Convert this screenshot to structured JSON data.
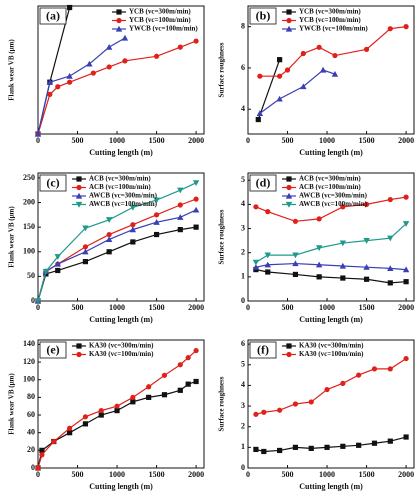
{
  "chart_data": [
    {
      "type": "line",
      "title": "(a)",
      "xlabel": "Cutting length (m)",
      "ylabel": "Flank wear VB (μm)",
      "legend": "upper right",
      "xlim": [
        0,
        2100
      ],
      "xticks": [
        0,
        500,
        1000,
        1500,
        2000
      ],
      "ylim": [
        0,
        420
      ],
      "yticks": [],
      "series": [
        {
          "name": "YCB (vc=300m/min)",
          "color": "#111111",
          "marker": "square",
          "x": [
            0,
            150,
            400
          ],
          "values": [
            0,
            170,
            415
          ]
        },
        {
          "name": "YCB (vc=100m/min)",
          "color": "#e0201b",
          "marker": "circle",
          "x": [
            0,
            150,
            250,
            400,
            700,
            900,
            1100,
            1500,
            1800,
            2000
          ],
          "values": [
            0,
            130,
            155,
            170,
            200,
            220,
            240,
            255,
            285,
            305
          ]
        },
        {
          "name": "YWCB (vc=100m/min)",
          "color": "#3a3fb5",
          "marker": "triangle",
          "x": [
            0,
            150,
            400,
            650,
            900,
            1100
          ],
          "values": [
            0,
            170,
            190,
            230,
            285,
            315
          ]
        }
      ]
    },
    {
      "type": "line",
      "title": "(b)",
      "xlabel": "Cutting length (m)",
      "ylabel": "Surface roughness",
      "legend": "upper left",
      "xlim": [
        0,
        2100
      ],
      "xticks": [
        0,
        500,
        1000,
        1500,
        2000
      ],
      "ylim": [
        2.8,
        9
      ],
      "yticks": [
        4,
        6,
        8
      ],
      "series": [
        {
          "name": "YCB (vc=300m/min)",
          "color": "#111111",
          "marker": "square",
          "x": [
            130,
            400
          ],
          "values": [
            3.5,
            6.4
          ]
        },
        {
          "name": "YCB (vc=100m/min)",
          "color": "#e0201b",
          "marker": "circle",
          "x": [
            150,
            400,
            500,
            700,
            900,
            1100,
            1500,
            1800,
            2000
          ],
          "values": [
            5.6,
            5.6,
            5.9,
            6.7,
            7.0,
            6.6,
            6.9,
            7.9,
            8.0
          ]
        },
        {
          "name": "YWCB (vc=100m/min)",
          "color": "#3a3fb5",
          "marker": "triangle",
          "x": [
            150,
            400,
            700,
            950,
            1100
          ],
          "values": [
            3.8,
            4.5,
            5.1,
            5.9,
            5.7
          ]
        }
      ]
    },
    {
      "type": "line",
      "title": "(c)",
      "xlabel": "Cutting length (m)",
      "ylabel": "Flank wear VB (μm)",
      "legend": "upper left",
      "xlim": [
        0,
        2100
      ],
      "xticks": [
        0,
        500,
        1000,
        1500,
        2000
      ],
      "ylim": [
        0,
        260
      ],
      "yticks": [
        0,
        50,
        100,
        150,
        200,
        250
      ],
      "series": [
        {
          "name": "ACB (vc=300m/min)",
          "color": "#111111",
          "marker": "square",
          "x": [
            0,
            100,
            250,
            600,
            900,
            1200,
            1500,
            1800,
            2000
          ],
          "values": [
            0,
            55,
            62,
            80,
            100,
            120,
            135,
            145,
            150
          ]
        },
        {
          "name": "ACB (vc=100m/min)",
          "color": "#e0201b",
          "marker": "circle",
          "x": [
            0,
            100,
            250,
            600,
            900,
            1200,
            1500,
            1800,
            2000
          ],
          "values": [
            0,
            60,
            75,
            110,
            135,
            155,
            175,
            195,
            207
          ]
        },
        {
          "name": "AWCB (vc=300m/min)",
          "color": "#3a3fb5",
          "marker": "triangle",
          "x": [
            0,
            100,
            250,
            600,
            900,
            1200,
            1500,
            1800,
            2000
          ],
          "values": [
            0,
            60,
            75,
            100,
            125,
            145,
            160,
            170,
            185
          ]
        },
        {
          "name": "AWCB (vc=100m/min)",
          "color": "#1f9a8a",
          "marker": "triangle-down",
          "x": [
            0,
            100,
            250,
            600,
            900,
            1200,
            1500,
            1800,
            2000
          ],
          "values": [
            0,
            60,
            90,
            148,
            165,
            190,
            205,
            225,
            240
          ]
        }
      ]
    },
    {
      "type": "line",
      "title": "(d)",
      "xlabel": "Cutting length (m)",
      "ylabel": "Surface roughness",
      "legend": "upper left",
      "xlim": [
        0,
        2100
      ],
      "xticks": [
        0,
        500,
        1000,
        1500,
        2000
      ],
      "ylim": [
        0,
        5.3
      ],
      "yticks": [
        0,
        1,
        2,
        3,
        4,
        5
      ],
      "series": [
        {
          "name": "ACB (vc=300m/min)",
          "color": "#111111",
          "marker": "square",
          "x": [
            100,
            250,
            600,
            900,
            1200,
            1500,
            1800,
            2000
          ],
          "values": [
            1.3,
            1.2,
            1.1,
            1.0,
            0.95,
            0.9,
            0.75,
            0.8
          ]
        },
        {
          "name": "ACB (vc=100m/min)",
          "color": "#e0201b",
          "marker": "circle",
          "x": [
            100,
            250,
            600,
            900,
            1200,
            1500,
            1800,
            2000
          ],
          "values": [
            3.9,
            3.7,
            3.3,
            3.4,
            3.9,
            4.0,
            4.2,
            4.3
          ]
        },
        {
          "name": "AWCB (vc=300m/min)",
          "color": "#3a3fb5",
          "marker": "triangle",
          "x": [
            100,
            250,
            600,
            900,
            1200,
            1500,
            1800,
            2000
          ],
          "values": [
            1.4,
            1.5,
            1.55,
            1.5,
            1.45,
            1.4,
            1.35,
            1.3
          ]
        },
        {
          "name": "AWCB (vc=100m/min)",
          "color": "#1f9a8a",
          "marker": "triangle-down",
          "x": [
            100,
            250,
            600,
            900,
            1200,
            1500,
            1800,
            2000
          ],
          "values": [
            1.6,
            1.9,
            1.9,
            2.2,
            2.4,
            2.5,
            2.6,
            3.2
          ]
        }
      ]
    },
    {
      "type": "line",
      "title": "(e)",
      "xlabel": "Cutting length (m)",
      "ylabel": "Flank wear VB (μm)",
      "legend": "upper left",
      "xlim": [
        0,
        2100
      ],
      "xticks": [
        0,
        500,
        1000,
        1500,
        2000
      ],
      "ylim": [
        0,
        145
      ],
      "yticks": [
        0,
        20,
        40,
        60,
        80,
        100,
        120,
        140
      ],
      "series": [
        {
          "name": "KA30 (vc=300m/min)",
          "color": "#111111",
          "marker": "square",
          "x": [
            0,
            50,
            200,
            400,
            600,
            800,
            1000,
            1200,
            1400,
            1600,
            1800,
            1900,
            2000
          ],
          "values": [
            0,
            20,
            30,
            40,
            50,
            60,
            65,
            75,
            80,
            83,
            88,
            95,
            98
          ]
        },
        {
          "name": "KA30 (vc=100m/min)",
          "color": "#e0201b",
          "marker": "circle",
          "x": [
            0,
            50,
            200,
            400,
            600,
            800,
            1000,
            1200,
            1400,
            1600,
            1800,
            1900,
            2000
          ],
          "values": [
            0,
            15,
            30,
            45,
            58,
            65,
            70,
            80,
            92,
            105,
            117,
            125,
            133
          ]
        }
      ]
    },
    {
      "type": "line",
      "title": "(f)",
      "xlabel": "Cutting length (m)",
      "ylabel": "Surface roughness",
      "legend": "upper left",
      "xlim": [
        0,
        2100
      ],
      "xticks": [
        0,
        500,
        1000,
        1500,
        2000
      ],
      "ylim": [
        0,
        6.2
      ],
      "yticks": [
        0,
        1,
        2,
        3,
        4,
        5,
        6
      ],
      "series": [
        {
          "name": "KA30 (vc=300m/min)",
          "color": "#111111",
          "marker": "square",
          "x": [
            100,
            200,
            400,
            600,
            800,
            1000,
            1200,
            1400,
            1600,
            1800,
            2000
          ],
          "values": [
            0.9,
            0.8,
            0.85,
            1.0,
            0.95,
            1.0,
            1.05,
            1.1,
            1.2,
            1.3,
            1.5
          ]
        },
        {
          "name": "KA30 (vc=100m/min)",
          "color": "#e0201b",
          "marker": "circle",
          "x": [
            100,
            200,
            400,
            600,
            800,
            1000,
            1200,
            1400,
            1600,
            1800,
            2000
          ],
          "values": [
            2.6,
            2.7,
            2.8,
            3.1,
            3.2,
            3.8,
            4.1,
            4.5,
            4.8,
            4.8,
            5.3
          ]
        }
      ]
    }
  ]
}
